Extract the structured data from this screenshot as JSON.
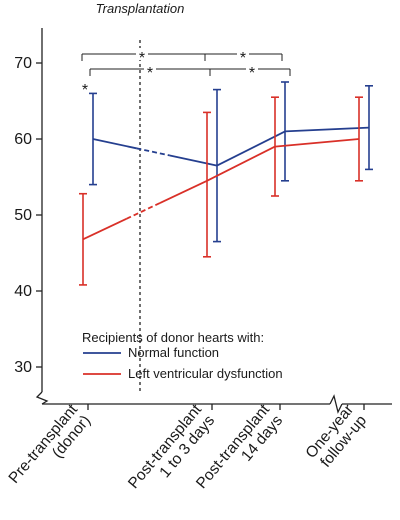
{
  "chart_data": {
    "type": "line",
    "categories": [
      "Pre-transplant\n(donor)",
      "Post-transplant\n1 to 3 days",
      "Post-transplant\n14 days",
      "One-year\nfollow-up"
    ],
    "ylim": [
      28,
      75
    ],
    "yticks": [
      30,
      40,
      50,
      60,
      70
    ],
    "annotation": "Transplantation",
    "legend": {
      "title": "Recipients of donor hearts with:",
      "position": "bottom-center"
    },
    "series": [
      {
        "name": "Normal function",
        "color": "#253f8f",
        "values": [
          60,
          56.5,
          61,
          61.5
        ],
        "err_low": [
          54,
          46.5,
          54.5,
          56
        ],
        "err_high": [
          66,
          66.5,
          67.5,
          67
        ],
        "dashed_segment": [
          0,
          1
        ]
      },
      {
        "name": "Left ventricular dysfunction",
        "color": "#d93028",
        "values": [
          46.8,
          54.5,
          59,
          60
        ],
        "err_low": [
          40.8,
          44.5,
          52.5,
          54.5
        ],
        "err_high": [
          52.8,
          63.5,
          65.5,
          65.5
        ],
        "dashed_segment": [
          0,
          1
        ]
      }
    ],
    "significance": [
      {
        "label": "*",
        "from": 0,
        "to": 2
      },
      {
        "label": "*",
        "from": 1,
        "to": 2
      },
      {
        "label": "*",
        "from": 0,
        "to": 2
      },
      {
        "label": "*",
        "from": 1,
        "to": 2
      },
      {
        "label": "*",
        "at": 0
      }
    ]
  }
}
